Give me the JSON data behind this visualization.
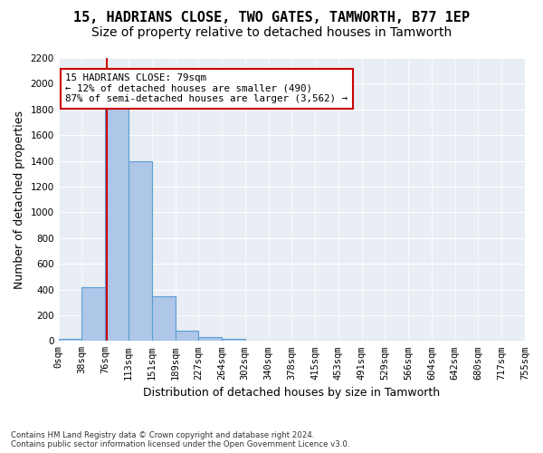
{
  "title": "15, HADRIANS CLOSE, TWO GATES, TAMWORTH, B77 1EP",
  "subtitle": "Size of property relative to detached houses in Tamworth",
  "xlabel": "Distribution of detached houses by size in Tamworth",
  "ylabel": "Number of detached properties",
  "bin_labels": [
    "0sqm",
    "38sqm",
    "76sqm",
    "113sqm",
    "151sqm",
    "189sqm",
    "227sqm",
    "264sqm",
    "302sqm",
    "340sqm",
    "378sqm",
    "415sqm",
    "453sqm",
    "491sqm",
    "529sqm",
    "566sqm",
    "604sqm",
    "642sqm",
    "680sqm",
    "717sqm",
    "755sqm"
  ],
  "bar_values": [
    15,
    420,
    1820,
    1400,
    350,
    80,
    30,
    18,
    0,
    0,
    0,
    0,
    0,
    0,
    0,
    0,
    0,
    0,
    0,
    0
  ],
  "bar_color": "#aec6e8",
  "bar_edge_color": "#5a9fd4",
  "annotation_text": "15 HADRIANS CLOSE: 79sqm\n← 12% of detached houses are smaller (490)\n87% of semi-detached houses are larger (3,562) →",
  "annotation_box_color": "#ffffff",
  "annotation_border_color": "#cc0000",
  "vline_color": "#cc0000",
  "ylim": [
    0,
    2200
  ],
  "yticks": [
    0,
    200,
    400,
    600,
    800,
    1000,
    1200,
    1400,
    1600,
    1800,
    2000,
    2200
  ],
  "bg_color": "#e8eef4",
  "footnote": "Contains HM Land Registry data © Crown copyright and database right 2024.\nContains public sector information licensed under the Open Government Licence v3.0.",
  "title_fontsize": 11,
  "subtitle_fontsize": 10,
  "xlabel_fontsize": 9,
  "ylabel_fontsize": 9,
  "tick_fontsize": 7.5
}
